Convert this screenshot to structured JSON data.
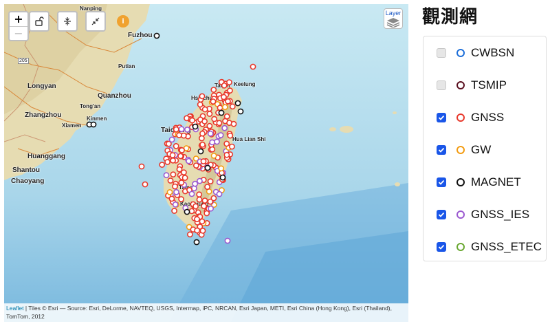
{
  "map": {
    "zoom_in": "+",
    "zoom_out": "−",
    "info_label": "i",
    "layer_button_label": "Layer",
    "road_marker": "205",
    "cities": [
      {
        "name": "Nanping"
      },
      {
        "name": "Fuzhou"
      },
      {
        "name": "Putian"
      },
      {
        "name": "Longyan"
      },
      {
        "name": "Quanzhou"
      },
      {
        "name": "Zhangzhou"
      },
      {
        "name": "Tong'an"
      },
      {
        "name": "Xiamen"
      },
      {
        "name": "Kinmen"
      },
      {
        "name": "Huanggang"
      },
      {
        "name": "Shantou"
      },
      {
        "name": "Chaoyang"
      },
      {
        "name": "Taichung"
      },
      {
        "name": "Keelung"
      },
      {
        "name": "Taipei"
      },
      {
        "name": "Hsinchu"
      },
      {
        "name": "Hua Lian Shi"
      },
      {
        "name": "Kaohsiung"
      },
      {
        "name": "Tainan"
      }
    ],
    "attribution_link": "Leaflet",
    "attribution_text": " | Tiles © Esri — Source: Esri, DeLorme, NAVTEQ, USGS, Intermap, iPC, NRCAN, Esri Japan, METI, Esri China (Hong Kong), Esri (Thailand), TomTom, 2012"
  },
  "panel": {
    "title": "觀測網",
    "networks": [
      {
        "label": "CWBSN",
        "checked": false,
        "color": "#1e6fd9"
      },
      {
        "label": "TSMIP",
        "checked": false,
        "color": "#5a0f1f"
      },
      {
        "label": "GNSS",
        "checked": true,
        "color": "#e8382b"
      },
      {
        "label": "GW",
        "checked": true,
        "color": "#f39c12"
      },
      {
        "label": "MAGNET",
        "checked": true,
        "color": "#111111"
      },
      {
        "label": "GNSS_IES",
        "checked": true,
        "color": "#9b59d0"
      },
      {
        "label": "GNSS_ETEC",
        "checked": true,
        "color": "#6aa832"
      }
    ]
  }
}
